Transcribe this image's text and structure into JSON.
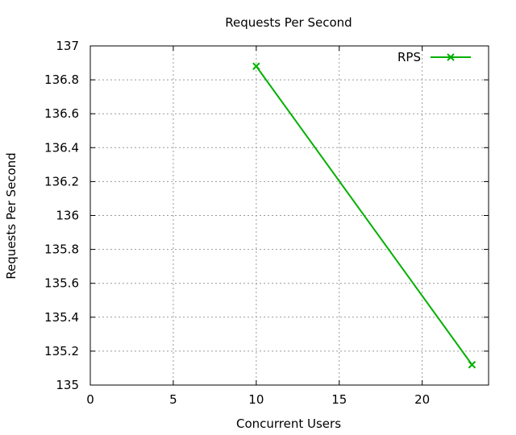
{
  "chart_data": {
    "type": "line",
    "title": "Requests Per Second",
    "xlabel": "Concurrent Users",
    "ylabel": "Requests Per Second",
    "xlim": [
      0,
      24
    ],
    "ylim": [
      135,
      137
    ],
    "xticks": [
      0,
      5,
      10,
      15,
      20
    ],
    "yticks": [
      135,
      135.2,
      135.4,
      135.6,
      135.8,
      136,
      136.2,
      136.4,
      136.6,
      136.8,
      137
    ],
    "grid": true,
    "legend_position": "top-right",
    "series": [
      {
        "name": "RPS",
        "color": "#00b000",
        "marker": "x",
        "x": [
          10,
          23
        ],
        "y": [
          136.88,
          135.12
        ]
      }
    ]
  }
}
